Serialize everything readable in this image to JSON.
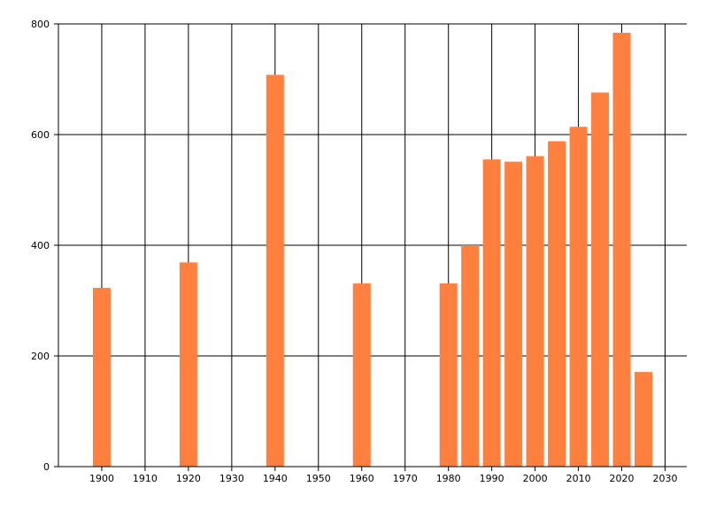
{
  "chart_data": {
    "type": "bar",
    "title": "",
    "xlabel": "",
    "ylabel": "",
    "x": [
      1900,
      1920,
      1940,
      1960,
      1980,
      1985,
      1990,
      1995,
      2000,
      2005,
      2010,
      2015,
      2020,
      2025
    ],
    "values": [
      323,
      369,
      708,
      331,
      331,
      400,
      555,
      551,
      561,
      588,
      614,
      676,
      784,
      171
    ],
    "xlim": [
      1890,
      2035
    ],
    "ylim": [
      0,
      800
    ],
    "x_ticks": [
      "1900",
      "1910",
      "1920",
      "1930",
      "1940",
      "1950",
      "1960",
      "1970",
      "1980",
      "1990",
      "2000",
      "2010",
      "2020",
      "2030"
    ],
    "y_ticks": [
      "0",
      "200",
      "400",
      "600",
      "800"
    ],
    "bar_color": "#ff7f3f",
    "grid": true
  }
}
